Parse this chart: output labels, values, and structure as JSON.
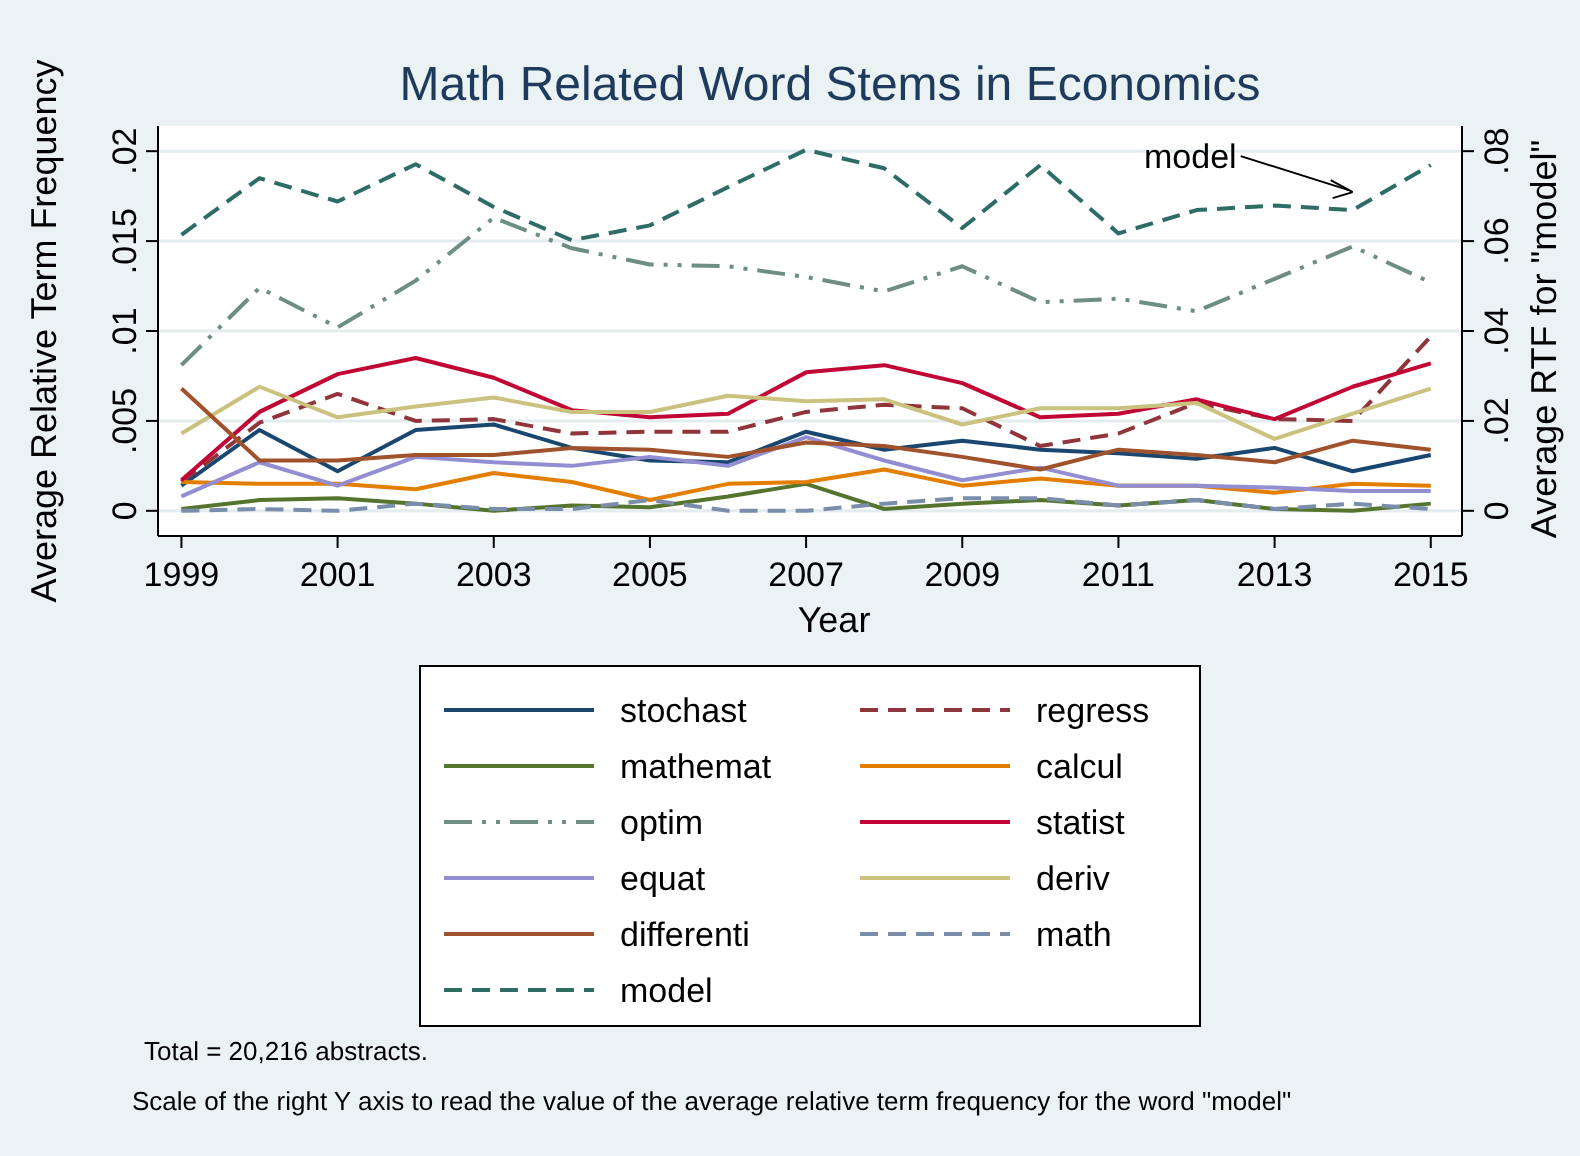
{
  "chart_data": {
    "type": "line",
    "title": "Math Related Word Stems in Economics",
    "xlabel": "Year",
    "ylabel": "Average Relative Term Frequency",
    "y2label": "Average RTF for \"model\"",
    "x": [
      1999,
      2000,
      2001,
      2002,
      2003,
      2004,
      2005,
      2006,
      2007,
      2008,
      2009,
      2010,
      2011,
      2012,
      2013,
      2014,
      2015
    ],
    "xlim": [
      1998.7,
      2015.4
    ],
    "xticks": [
      1999,
      2001,
      2003,
      2005,
      2007,
      2009,
      2011,
      2013,
      2015
    ],
    "ylim": [
      -0.0014,
      0.0214
    ],
    "yticks": [
      0,
      {
        "value": 0.005,
        "label": ".005"
      },
      {
        "value": 0.01,
        "label": ".01"
      },
      {
        "value": 0.015,
        "label": ".015"
      },
      {
        "value": 0.02,
        "label": ".02"
      }
    ],
    "y2lim": [
      -0.0056,
      0.0856
    ],
    "y2ticks": [
      0,
      {
        "value": 0.02,
        "label": ".02"
      },
      {
        "value": 0.04,
        "label": ".04"
      },
      {
        "value": 0.06,
        "label": ".06"
      },
      {
        "value": 0.08,
        "label": ".08"
      }
    ],
    "grid": "y",
    "legend": "bottom",
    "marker": "none",
    "series": [
      {
        "name": "stochast",
        "color": "#1a476f",
        "line_style": "solid",
        "values": [
          0.0014,
          0.0045,
          0.0022,
          0.0045,
          0.0048,
          0.0035,
          0.0028,
          0.0027,
          0.0044,
          0.0034,
          0.0039,
          0.0034,
          0.0032,
          0.0029,
          0.0035,
          0.0022,
          0.0031
        ]
      },
      {
        "name": "regress",
        "color": "#90353b",
        "line_style": "dashed",
        "values": [
          0.0016,
          0.0049,
          0.0065,
          0.005,
          0.0051,
          0.0043,
          0.0044,
          0.0044,
          0.0055,
          0.0059,
          0.0057,
          0.0036,
          0.0043,
          0.006,
          0.0051,
          0.005,
          0.0097
        ]
      },
      {
        "name": "mathemat",
        "color": "#55752f",
        "line_style": "solid",
        "values": [
          0.0001,
          0.0006,
          0.0007,
          0.0004,
          0.0,
          0.0003,
          0.0002,
          0.0008,
          0.0015,
          0.0001,
          0.0004,
          0.0006,
          0.0003,
          0.0006,
          0.0001,
          0.0,
          0.0004
        ]
      },
      {
        "name": "calcul",
        "color": "#e37e00",
        "line_style": "solid",
        "values": [
          0.0016,
          0.0015,
          0.0015,
          0.0012,
          0.0021,
          0.0016,
          0.0006,
          0.0015,
          0.0016,
          0.0023,
          0.0014,
          0.0018,
          0.0014,
          0.0014,
          0.001,
          0.0015,
          0.0014
        ]
      },
      {
        "name": "optim",
        "color": "#6e8e84",
        "line_style": "dashdot",
        "values": [
          0.0081,
          0.0124,
          0.0102,
          0.0128,
          0.0163,
          0.0146,
          0.0137,
          0.0136,
          0.013,
          0.0122,
          0.0136,
          0.0116,
          0.0118,
          0.0111,
          0.0129,
          0.0147,
          0.0127
        ]
      },
      {
        "name": "statist",
        "color": "#c10534",
        "line_style": "solid",
        "values": [
          0.0017,
          0.0055,
          0.0076,
          0.0085,
          0.0074,
          0.0056,
          0.0052,
          0.0054,
          0.0077,
          0.0081,
          0.0071,
          0.0052,
          0.0054,
          0.0062,
          0.0051,
          0.0069,
          0.0082
        ]
      },
      {
        "name": "equat",
        "color": "#938dd2",
        "line_style": "solid",
        "values": [
          0.0008,
          0.0027,
          0.0014,
          0.003,
          0.0027,
          0.0025,
          0.003,
          0.0025,
          0.0041,
          0.0028,
          0.0017,
          0.0024,
          0.0014,
          0.0014,
          0.0013,
          0.0011,
          0.0011
        ]
      },
      {
        "name": "deriv",
        "color": "#cac27e",
        "line_style": "solid",
        "values": [
          0.0043,
          0.0069,
          0.0052,
          0.0058,
          0.0063,
          0.0055,
          0.0055,
          0.0064,
          0.0061,
          0.0062,
          0.0048,
          0.0057,
          0.0057,
          0.006,
          0.004,
          0.0054,
          0.0068
        ]
      },
      {
        "name": "differenti",
        "color": "#a0522d",
        "line_style": "solid",
        "values": [
          0.0068,
          0.0028,
          0.0028,
          0.0031,
          0.0031,
          0.0035,
          0.0034,
          0.003,
          0.0038,
          0.0036,
          0.003,
          0.0023,
          0.0034,
          0.0031,
          0.0027,
          0.0039,
          0.0034
        ]
      },
      {
        "name": "math",
        "color": "#7a8dab",
        "line_style": "dashed",
        "values": [
          0.0,
          0.0001,
          0.0,
          0.0004,
          0.0001,
          0.0001,
          0.0006,
          0.0,
          0.0,
          0.0004,
          0.0007,
          0.0007,
          0.0003,
          0.0006,
          0.0001,
          0.0004,
          0.0001
        ]
      },
      {
        "name": "model",
        "color": "#2d6d66",
        "line_style": "dashed",
        "axis": "y2",
        "values": [
          0.0614,
          0.074,
          0.0688,
          0.0771,
          0.0676,
          0.0602,
          0.0635,
          0.072,
          0.0803,
          0.0762,
          0.0629,
          0.0769,
          0.0617,
          0.0669,
          0.0679,
          0.0669,
          0.0769
        ]
      }
    ],
    "annotations": [
      "model",
      "Total = 20,216 abstracts.",
      "Scale of the right Y axis to read the value of the average relative term frequency for the word \"model\""
    ]
  }
}
